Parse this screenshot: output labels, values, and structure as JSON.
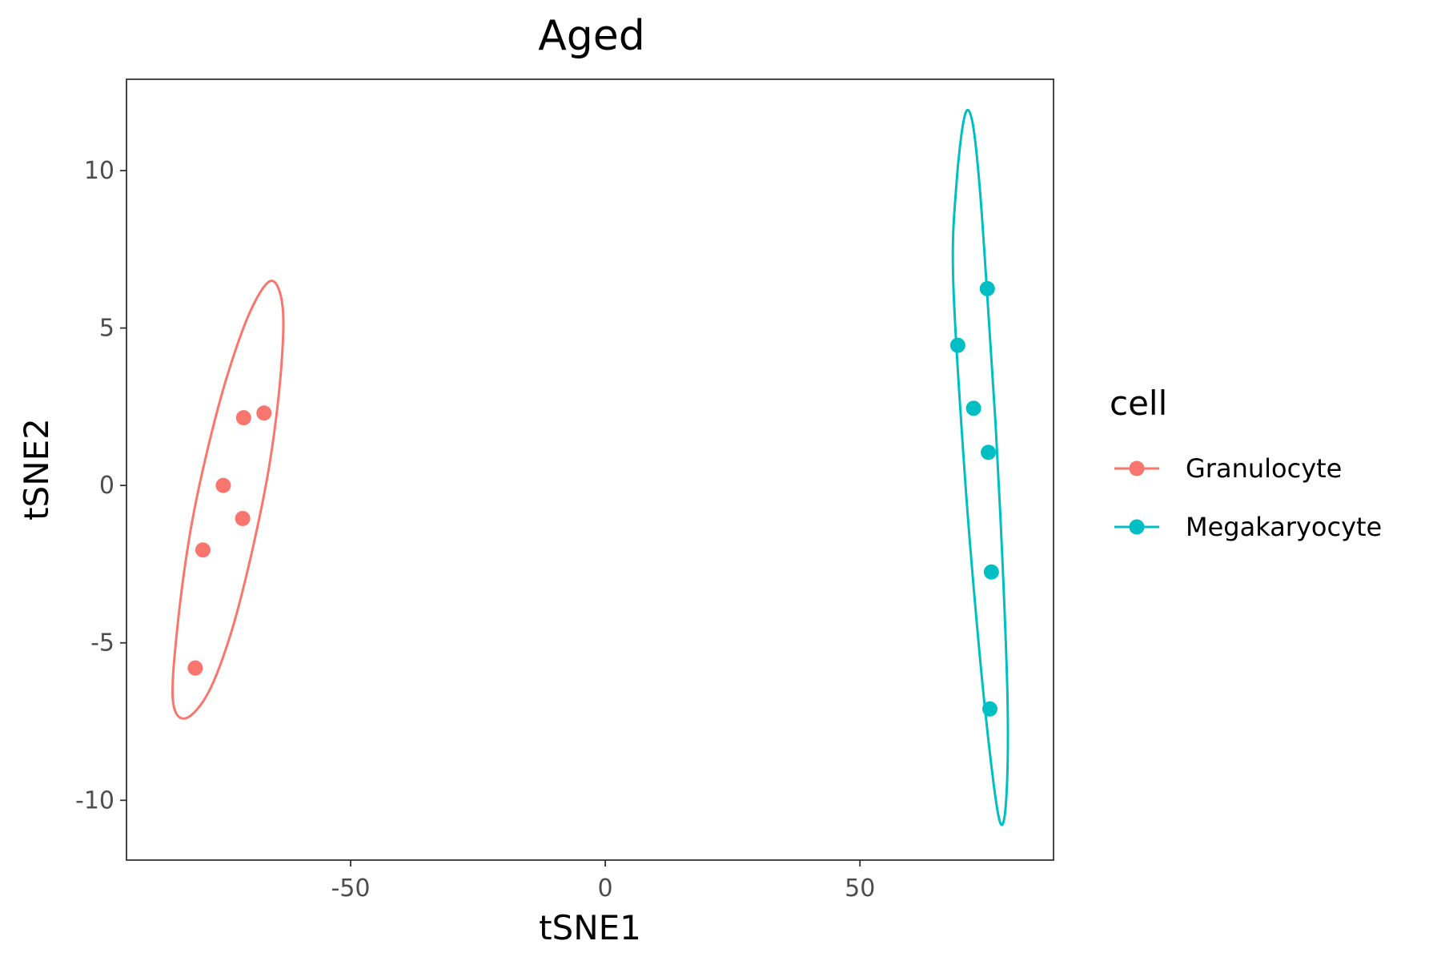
{
  "chart_data": {
    "type": "scatter",
    "title": "Aged",
    "xlabel": "tSNE1",
    "ylabel": "tSNE2",
    "xlim": [
      -94,
      88
    ],
    "ylim": [
      -11.9,
      12.9
    ],
    "xticks": [
      -50,
      0,
      50
    ],
    "yticks": [
      -10,
      -5,
      0,
      5,
      10
    ],
    "x_tick_labels": [
      "-50",
      "0",
      "50"
    ],
    "y_tick_labels": [
      "-10",
      "-5",
      "0",
      "5",
      "10"
    ],
    "grid": false,
    "legend": {
      "title": "cell",
      "position": "right"
    },
    "series": [
      {
        "name": "Granulocyte",
        "color": "#F8766D",
        "points": [
          {
            "x": -71.0,
            "y": 2.15
          },
          {
            "x": -67.0,
            "y": 2.3
          },
          {
            "x": -75.0,
            "y": 0.0
          },
          {
            "x": -71.2,
            "y": -1.05
          },
          {
            "x": -79.0,
            "y": -2.05
          },
          {
            "x": -80.5,
            "y": -5.8
          }
        ],
        "ellipse": [
          {
            "x": -84.9,
            "y": -6.8
          },
          {
            "x": -84.0,
            "y": -4.5
          },
          {
            "x": -81.5,
            "y": -1.5
          },
          {
            "x": -78.0,
            "y": 1.2
          },
          {
            "x": -74.0,
            "y": 3.6
          },
          {
            "x": -69.5,
            "y": 5.6
          },
          {
            "x": -65.5,
            "y": 6.5
          },
          {
            "x": -63.3,
            "y": 5.6
          },
          {
            "x": -63.8,
            "y": 3.4
          },
          {
            "x": -66.0,
            "y": 0.6
          },
          {
            "x": -69.5,
            "y": -2.2
          },
          {
            "x": -73.5,
            "y": -4.7
          },
          {
            "x": -78.0,
            "y": -6.6
          },
          {
            "x": -82.5,
            "y": -7.4
          }
        ]
      },
      {
        "name": "Megakaryocyte",
        "color": "#00BFC4",
        "points": [
          {
            "x": 75.0,
            "y": 6.25
          },
          {
            "x": 69.2,
            "y": 4.45
          },
          {
            "x": 72.3,
            "y": 2.45
          },
          {
            "x": 75.2,
            "y": 1.05
          },
          {
            "x": 75.8,
            "y": -2.75
          },
          {
            "x": 75.5,
            "y": -7.1
          }
        ],
        "ellipse": [
          {
            "x": 68.3,
            "y": 6.5
          },
          {
            "x": 68.9,
            "y": 9.5
          },
          {
            "x": 70.5,
            "y": 11.7
          },
          {
            "x": 72.0,
            "y": 11.6
          },
          {
            "x": 73.5,
            "y": 9.5
          },
          {
            "x": 75.0,
            "y": 6.0
          },
          {
            "x": 76.6,
            "y": 2.0
          },
          {
            "x": 78.0,
            "y": -2.5
          },
          {
            "x": 79.0,
            "y": -7.0
          },
          {
            "x": 78.7,
            "y": -10.0
          },
          {
            "x": 77.5,
            "y": -10.7
          },
          {
            "x": 75.5,
            "y": -8.5
          },
          {
            "x": 73.0,
            "y": -4.5
          },
          {
            "x": 70.5,
            "y": 0.5
          }
        ]
      }
    ]
  }
}
